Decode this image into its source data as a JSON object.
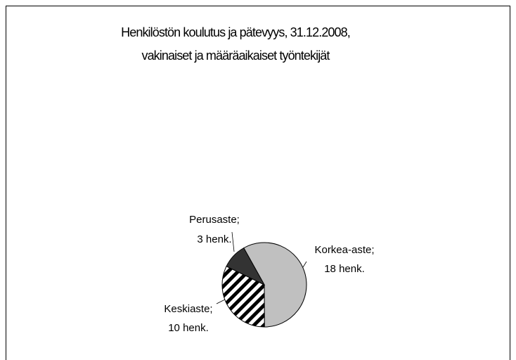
{
  "chart_data": {
    "type": "pie",
    "title": [
      "Henkilöstön koulutus ja pätevyys, 31.12.2008,",
      "vakinaiset ja määräaikaiset työntekijät"
    ],
    "categories": [
      "Korkea-aste;",
      "Keskiaste;",
      "Perusaste;"
    ],
    "values": [
      18,
      10,
      3
    ],
    "value_labels": [
      "18 henk.",
      "10 henk.",
      "3 henk."
    ],
    "colors": [
      "#c0c0c0",
      "hatch",
      "#333333"
    ]
  }
}
